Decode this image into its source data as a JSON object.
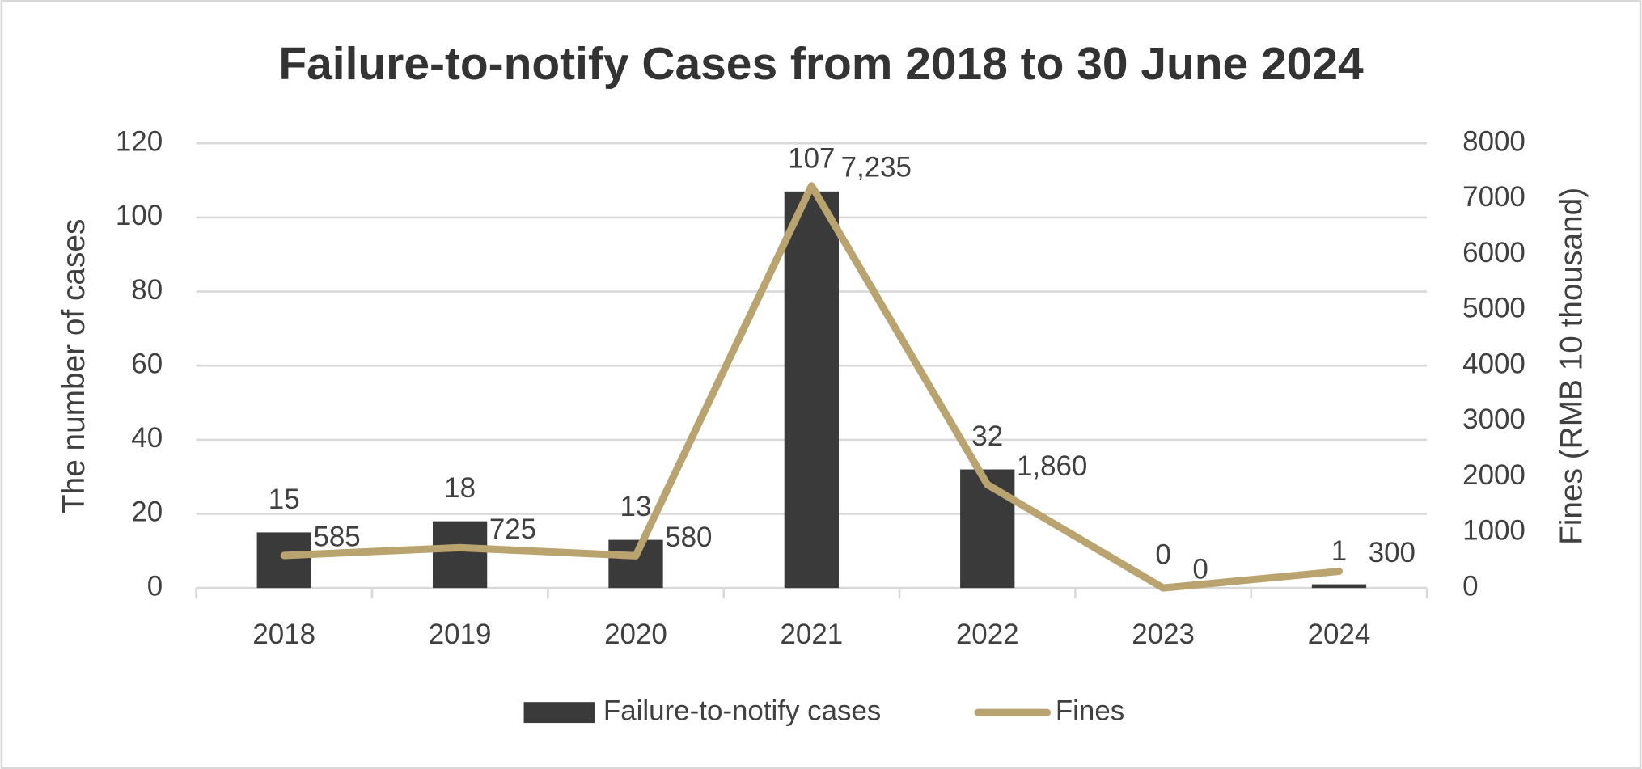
{
  "chart_data": {
    "type": "bar",
    "title": "Failure-to-notify Cases from 2018 to 30 June 2024",
    "y_label": "The number of cases",
    "y2_label": "Fines (RMB 10 thousand)",
    "categories": [
      "2018",
      "2019",
      "2020",
      "2021",
      "2022",
      "2023",
      "2024"
    ],
    "series": [
      {
        "name": "Failure-to-notify cases",
        "type": "bar",
        "color": "#3a3a3a",
        "values": [
          15,
          18,
          13,
          107,
          32,
          0,
          1
        ]
      },
      {
        "name": "Fines",
        "type": "line",
        "axis": "y2",
        "color": "#b9a36f",
        "values": [
          585,
          725,
          580,
          7235,
          1860,
          0,
          300
        ],
        "value_labels": [
          "585",
          "725",
          "580",
          "7,235",
          "1,860",
          "0",
          "300"
        ]
      }
    ],
    "ylim": [
      0,
      120
    ],
    "yticks": [
      0,
      20,
      40,
      60,
      80,
      100,
      120
    ],
    "y2lim": [
      0,
      8000
    ],
    "y2ticks": [
      0,
      1000,
      2000,
      3000,
      4000,
      5000,
      6000,
      7000,
      8000
    ],
    "grid": true,
    "legend": "bottom"
  }
}
